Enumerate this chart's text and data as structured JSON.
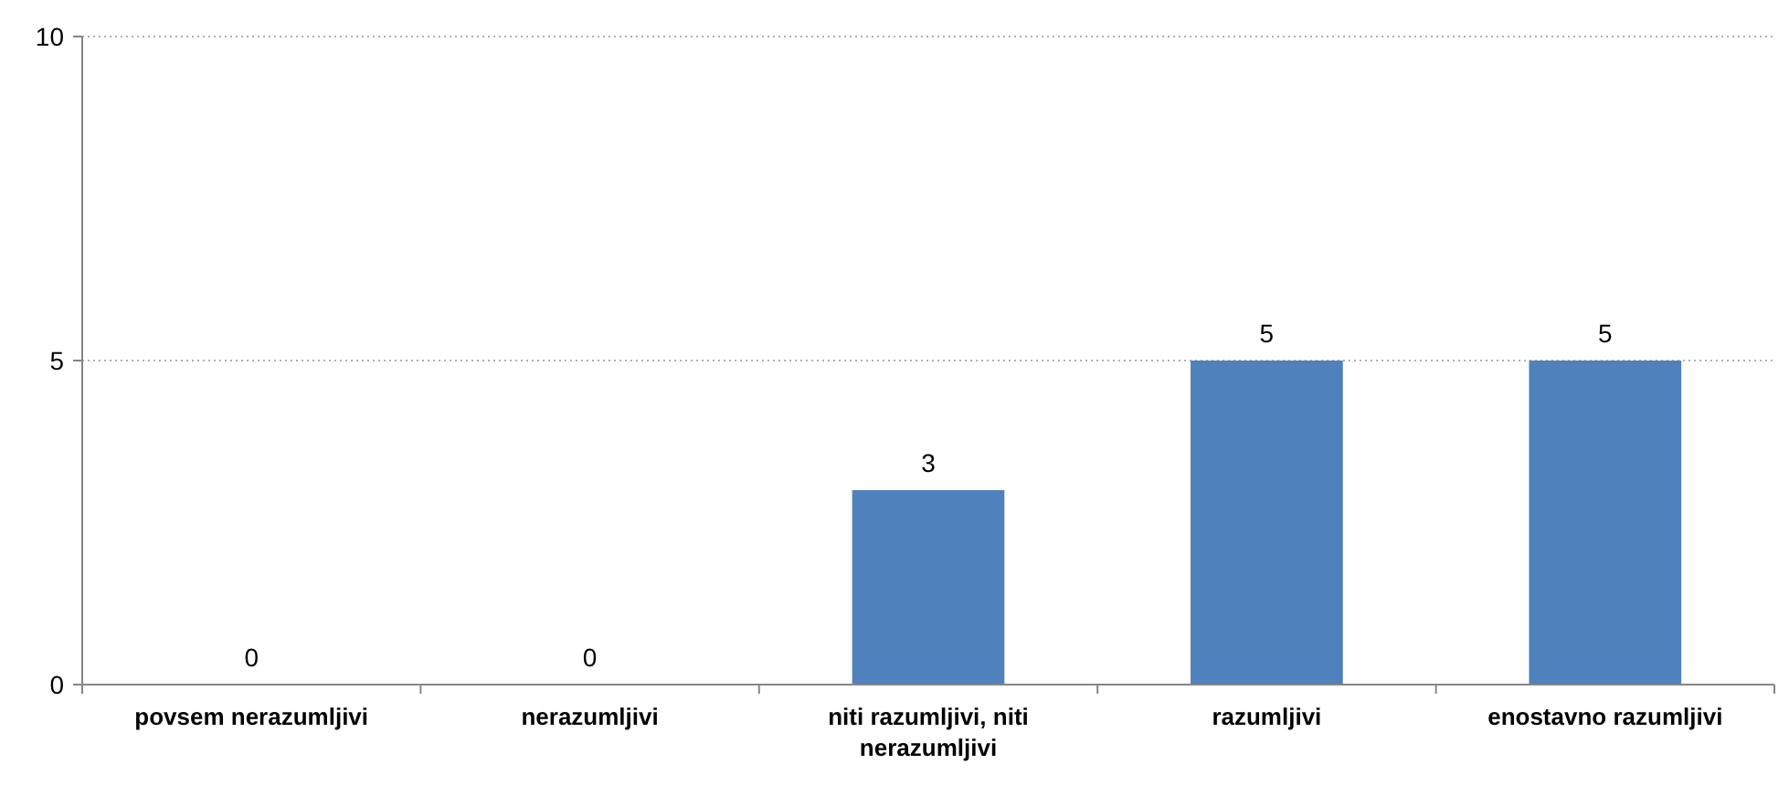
{
  "chart_data": {
    "type": "bar",
    "categories": [
      "povsem nerazumljivi",
      "nerazumljivi",
      "niti razumljivi, niti nerazumljivi",
      "razumljivi",
      "enostavno razumljivi"
    ],
    "values": [
      0,
      0,
      3,
      5,
      5
    ],
    "color": "#4f81bd",
    "ylim": [
      0,
      10
    ],
    "yticks": [
      0,
      5,
      10
    ],
    "grid": "y",
    "data_labels": true
  }
}
